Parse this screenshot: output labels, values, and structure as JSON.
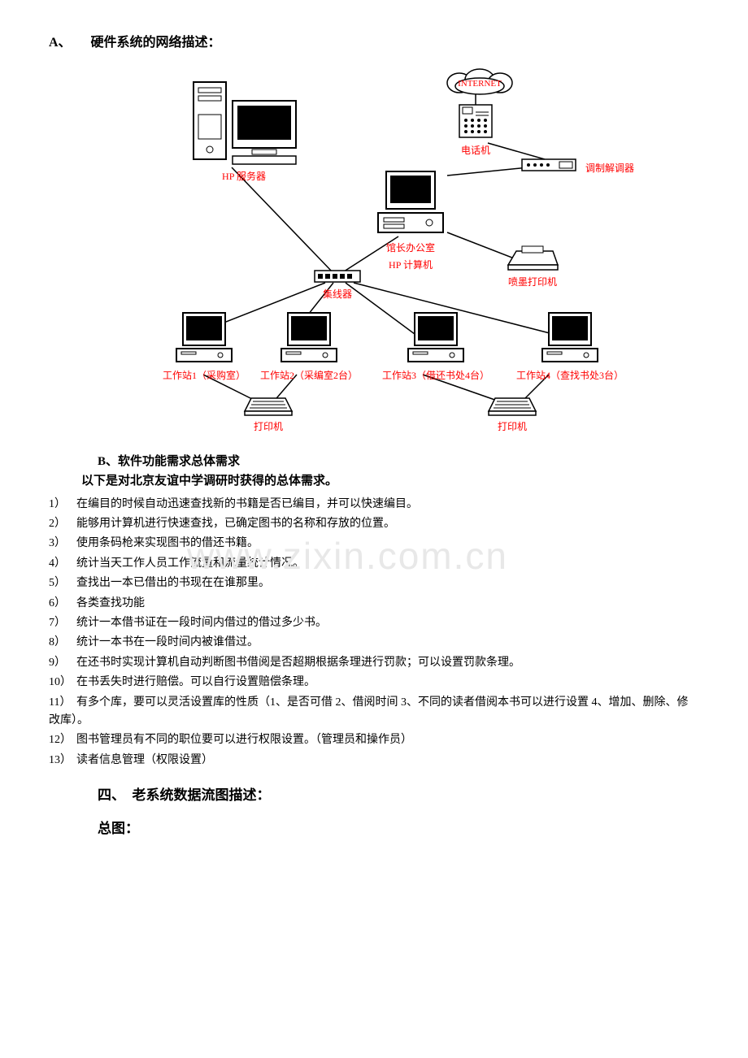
{
  "sectionA": {
    "title": "A、　　硬件系统的网络描述："
  },
  "diagram": {
    "internet": "INTERNET",
    "phone": "电话机",
    "modem": "调制解调器",
    "server": "HP 服务器",
    "director_pc1": "馆长办公室",
    "director_pc2": "HP 计算机",
    "inkjet": "喷墨打印机",
    "hub": "集线器",
    "ws1": "工作站1（采购室）",
    "ws2": "工作站2（采编室2台）",
    "ws3": "工作站3（借还书处4台）",
    "ws4": "工作站4（查找书处3台）",
    "printer_l": "打印机",
    "printer_r": "打印机",
    "colors": {
      "label": "#ff0000",
      "stroke": "#000000"
    }
  },
  "sectionB": {
    "title": "B、软件功能需求总体需求",
    "intro": "以下是对北京友谊中学调研时获得的总体需求。"
  },
  "requirements": [
    "在编目的时候自动迅速查找新的书籍是否已编目，并可以快速编目。",
    "能够用计算机进行快速查找，已确定图书的名称和存放的位置。",
    "使用条码枪来实现图书的借还书籍。",
    "统计当天工作人员工作流量和流量统计情况。",
    "查找出一本已借出的书现在在谁那里。",
    "各类查找功能",
    "统计一本借书证在一段时间内借过的借过多少书。",
    "统计一本书在一段时间内被谁借过。",
    "在还书时实现计算机自动判断图书借阅是否超期根据条理进行罚款；可以设置罚款条理。",
    "在书丢失时进行赔偿。可以自行设置赔偿条理。",
    "有多个库，要可以灵活设置库的性质（1、是否可借 2、借阅时间 3、不同的读者借阅本书可以进行设置 4、增加、删除、修改库）。",
    "图书管理员有不同的职位要可以进行权限设置。（管理员和操作员）",
    "读者信息管理（权限设置）"
  ],
  "section4": {
    "title": "四、　老系统数据流图描述：",
    "sub": "总图："
  },
  "watermark": "www.zixin.com.cn"
}
